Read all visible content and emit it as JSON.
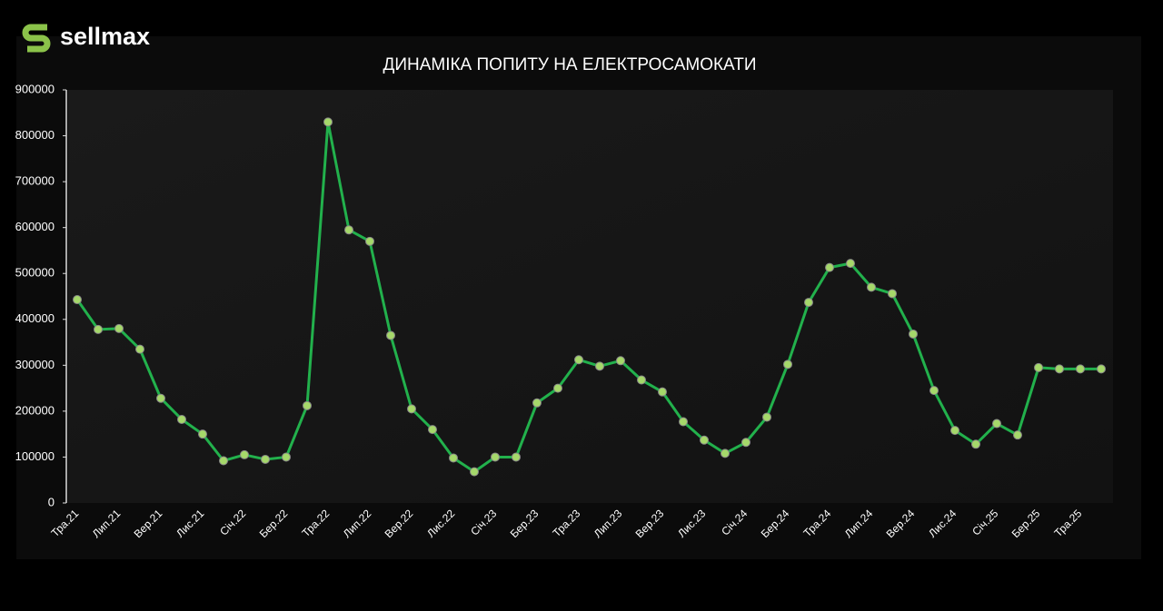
{
  "brand": "sellmax",
  "chart_data": {
    "type": "line",
    "title": "ДИНАМІКА ПОПИТУ НА ЕЛЕКТРОСАМОКАТИ",
    "categories": [
      "Тра.21",
      null,
      "Лип.21",
      null,
      "Вер.21",
      null,
      "Лис.21",
      null,
      "Січ.22",
      null,
      "Бер.22",
      null,
      "Тра.22",
      null,
      "Лип.22",
      null,
      "Вер.22",
      null,
      "Лис.22",
      null,
      "Січ.23",
      null,
      "Бер.23",
      null,
      "Тра.23",
      null,
      "Лип.23",
      null,
      "Вер.23",
      null,
      "Лис.23",
      null,
      "Січ.24",
      null,
      "Бер.24",
      null,
      "Тра.24",
      null,
      "Лип.24",
      null,
      "Вер.24",
      null,
      "Лис.24",
      null,
      "Січ.25",
      null,
      "Бер.25",
      null,
      "Тра.25",
      null
    ],
    "series": [
      {
        "color": "#22b14c",
        "marker_color": "#a5d86a",
        "values": [
          443000,
          378000,
          380000,
          335000,
          228000,
          182000,
          150000,
          92000,
          105000,
          95000,
          100000,
          212000,
          830000,
          595000,
          570000,
          365000,
          205000,
          160000,
          98000,
          68000,
          100000,
          100000,
          218000,
          250000,
          312000,
          298000,
          310000,
          268000,
          242000,
          177000,
          137000,
          108000,
          132000,
          187000,
          302000,
          437000,
          513000,
          522000,
          470000,
          456000,
          368000,
          245000,
          158000,
          128000,
          173000,
          148000,
          295000,
          292000,
          292000,
          292000
        ]
      }
    ],
    "ylim": [
      0,
      900000
    ],
    "yticks": [
      0,
      100000,
      200000,
      300000,
      400000,
      500000,
      600000,
      700000,
      800000,
      900000
    ],
    "grid": false
  }
}
